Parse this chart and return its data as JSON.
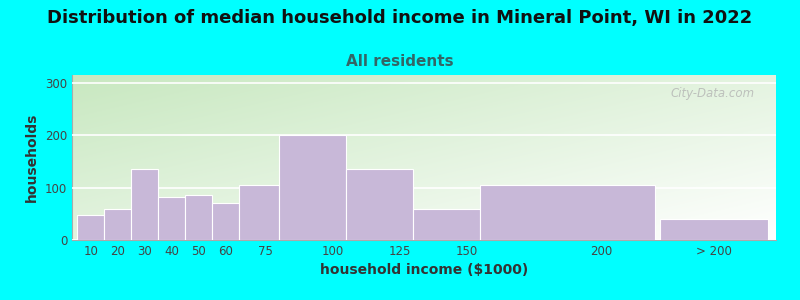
{
  "title": "Distribution of median household income in Mineral Point, WI in 2022",
  "subtitle": "All residents",
  "xlabel": "household income ($1000)",
  "ylabel": "households",
  "background_figure": "#00FFFF",
  "bar_color": "#C8B8D8",
  "categories": [
    "10",
    "20",
    "30",
    "40",
    "50",
    "60",
    "75",
    "100",
    "125",
    "150",
    "200",
    "> 200"
  ],
  "bar_lefts": [
    5,
    15,
    25,
    35,
    45,
    55,
    65,
    80,
    105,
    130,
    155,
    222
  ],
  "bar_widths": [
    10,
    10,
    10,
    10,
    10,
    10,
    15,
    25,
    25,
    25,
    65,
    40
  ],
  "values": [
    47,
    60,
    135,
    82,
    85,
    70,
    105,
    200,
    135,
    60,
    105,
    40
  ],
  "xtick_positions": [
    10,
    20,
    30,
    40,
    50,
    60,
    75,
    100,
    125,
    150,
    200,
    242
  ],
  "xtick_labels": [
    "10",
    "20",
    "30",
    "40",
    "50",
    "60",
    "75",
    "100",
    "125",
    "150",
    "200",
    "> 200"
  ],
  "yticks": [
    0,
    100,
    200,
    300
  ],
  "ylim": [
    0,
    315
  ],
  "xlim": [
    3,
    265
  ],
  "title_fontsize": 13,
  "subtitle_fontsize": 11,
  "axis_label_fontsize": 10,
  "tick_fontsize": 8.5,
  "watermark_text": "City-Data.com",
  "subtitle_color": "#336666",
  "title_color": "#111111",
  "gradient_bottom_left": "#c8e8c0",
  "gradient_top_right": "#ffffff"
}
